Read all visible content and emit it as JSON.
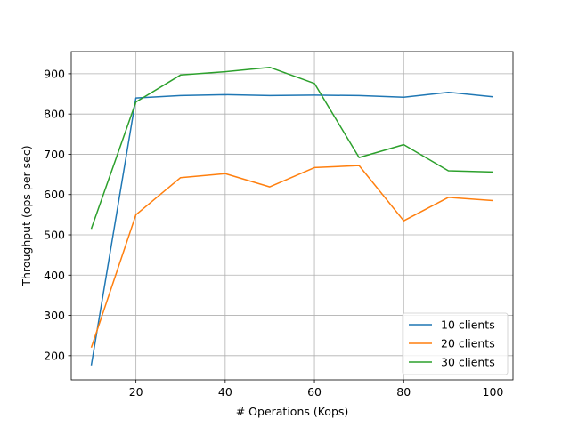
{
  "chart_data": {
    "type": "line",
    "title": "",
    "xlabel": "# Operations (Kops)",
    "ylabel": "Throughput (ops per sec)",
    "x": [
      10,
      20,
      30,
      40,
      50,
      60,
      70,
      80,
      90,
      100
    ],
    "xlim": [
      5.5,
      104.5
    ],
    "ylim": [
      140,
      955
    ],
    "xticks": [
      20,
      40,
      60,
      80,
      100
    ],
    "yticks": [
      200,
      300,
      400,
      500,
      600,
      700,
      800,
      900
    ],
    "grid": true,
    "legend_position": "lower right",
    "series": [
      {
        "name": "10 clients",
        "color": "#1f77b4",
        "values": [
          176,
          840,
          846,
          848,
          846,
          847,
          846,
          842,
          854,
          843
        ]
      },
      {
        "name": "20 clients",
        "color": "#ff7f0e",
        "values": [
          220,
          550,
          642,
          652,
          619,
          667,
          672,
          535,
          593,
          585
        ]
      },
      {
        "name": "30 clients",
        "color": "#2ca02c",
        "values": [
          515,
          830,
          897,
          905,
          916,
          876,
          692,
          724,
          659,
          656
        ]
      }
    ]
  }
}
